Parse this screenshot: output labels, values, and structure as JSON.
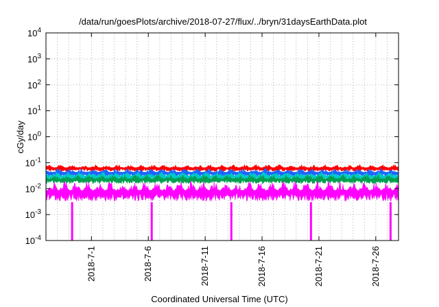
{
  "chart_data": {
    "type": "line",
    "title": "/data/run/goesPlots/archive/2018-07-27/flux/../bryn/31daysEarthData.plot",
    "xlabel": "Coordinated Universal Time (UTC)",
    "ylabel": "cGy/day",
    "yscale": "log",
    "ylim": [
      0.0001,
      10000
    ],
    "xlim": [
      "2018-06-27",
      "2018-07-28"
    ],
    "grid": true,
    "y_ticks": [
      {
        "base": "10",
        "exp": "-4"
      },
      {
        "base": "10",
        "exp": "-3"
      },
      {
        "base": "10",
        "exp": "-2"
      },
      {
        "base": "10",
        "exp": "-1"
      },
      {
        "base": "10",
        "exp": "0"
      },
      {
        "base": "10",
        "exp": "1"
      },
      {
        "base": "10",
        "exp": "2"
      },
      {
        "base": "10",
        "exp": "3"
      },
      {
        "base": "10",
        "exp": "4"
      }
    ],
    "x_ticks": [
      "2018-7-1",
      "2018-7-6",
      "2018-7-11",
      "2018-7-16",
      "2018-7-21",
      "2018-7-26"
    ],
    "series": [
      {
        "color": "#ff0000",
        "typical_range": [
          0.045,
          0.085
        ]
      },
      {
        "color": "#1e64ff",
        "typical_range": [
          0.028,
          0.06
        ]
      },
      {
        "color": "#00c8c8",
        "typical_range": [
          0.02,
          0.045
        ]
      },
      {
        "color": "#00a050",
        "typical_range": [
          0.015,
          0.035
        ]
      },
      {
        "color": "#ff00ff",
        "typical_range": [
          0.003,
          0.02
        ]
      }
    ],
    "dropouts": [
      {
        "x": "2018-06-29",
        "series_color": "#ff00ff",
        "to": 0.0001
      },
      {
        "x": "2018-07-06",
        "series_color": "#ff00ff",
        "to": 0.0001
      },
      {
        "x": "2018-07-13",
        "series_color": "#ff00ff",
        "to": 0.0001
      },
      {
        "x": "2018-07-20",
        "series_color": "#ff00ff",
        "to": 0.0001
      },
      {
        "x": "2018-07-27",
        "series_color": "#ff00ff",
        "to": 0.0001
      }
    ]
  }
}
